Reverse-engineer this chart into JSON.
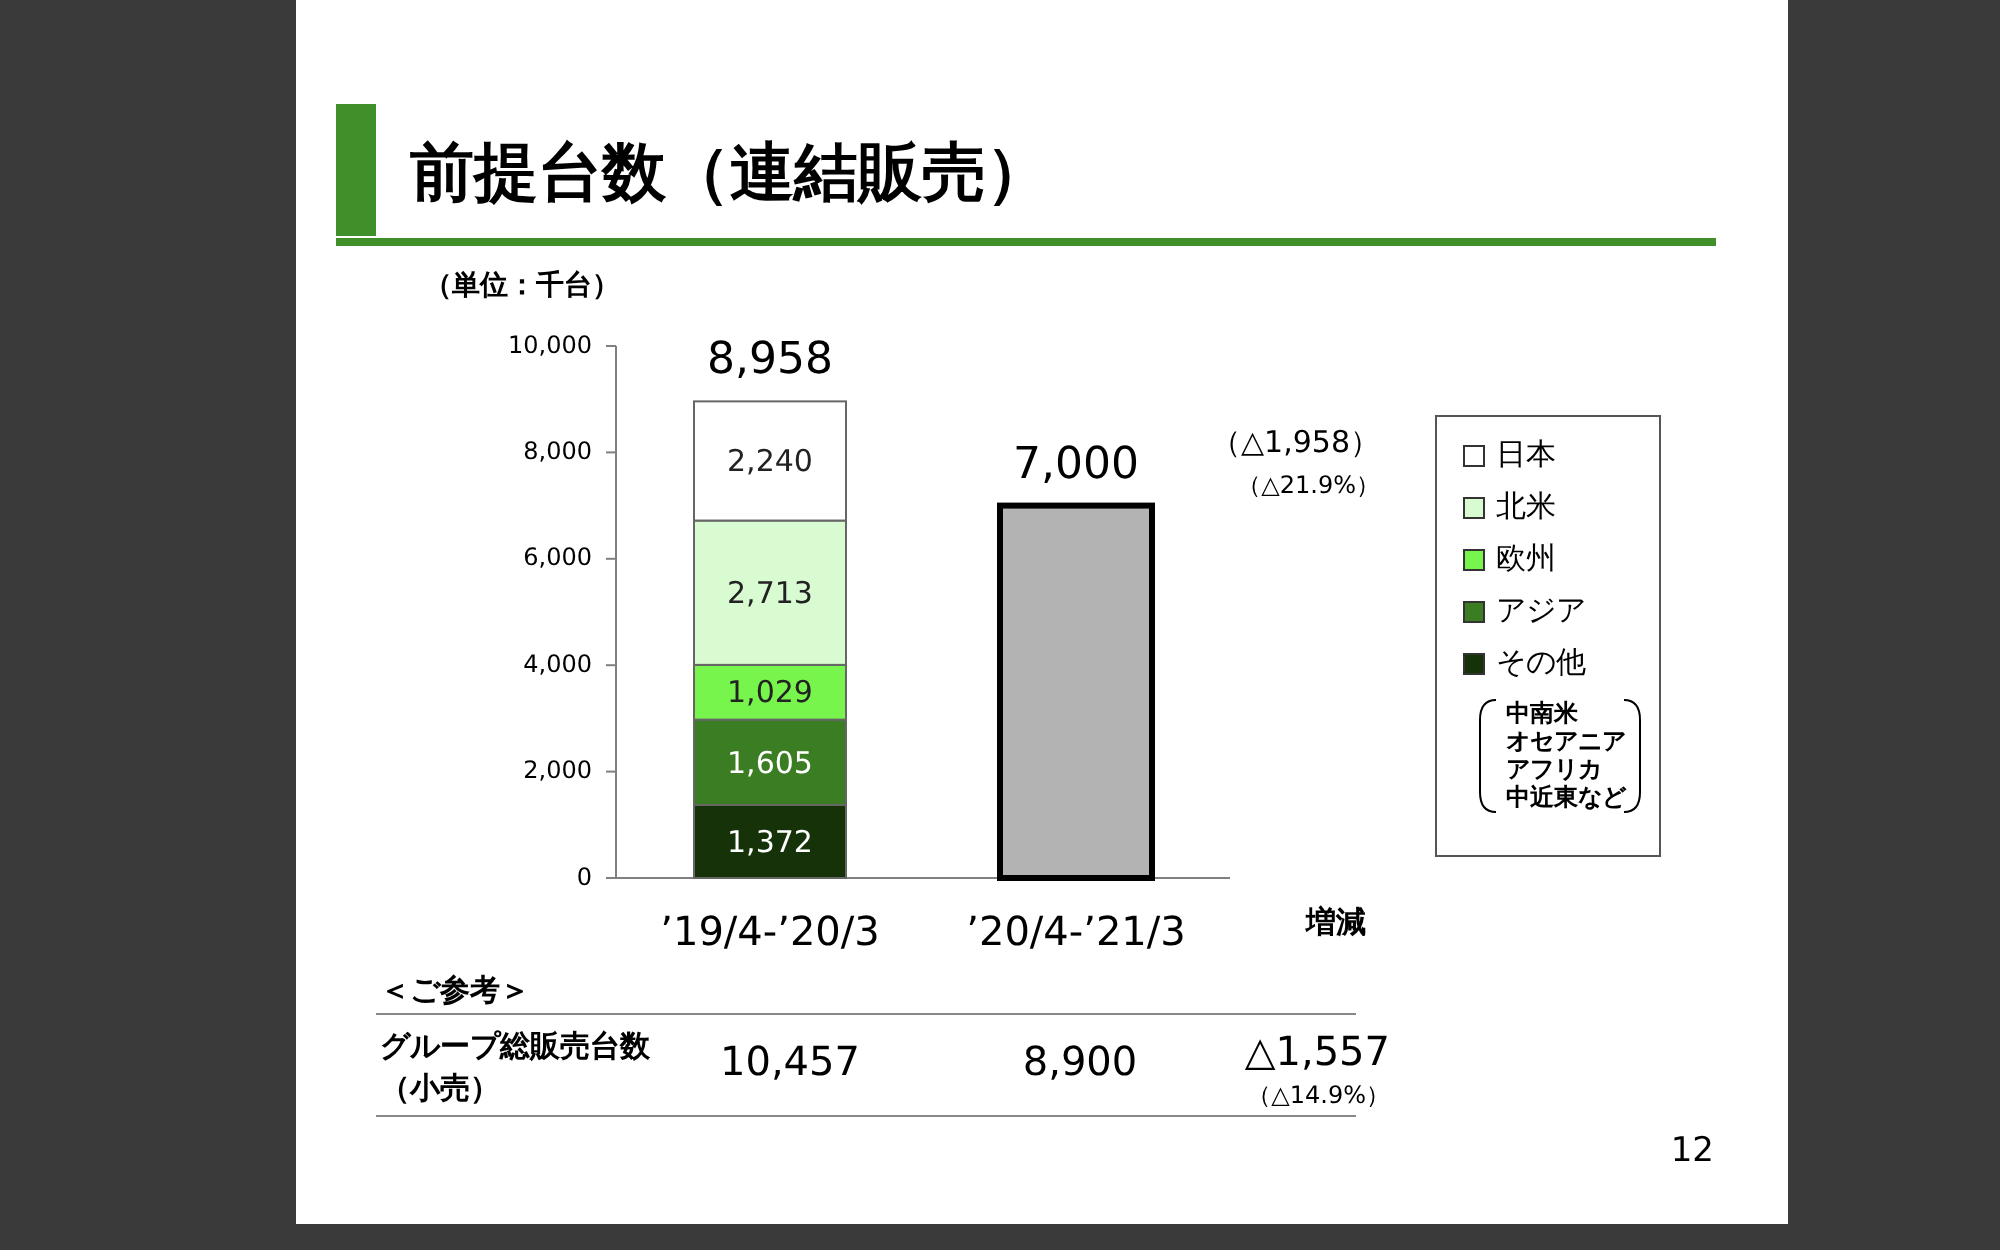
{
  "chart_data": {
    "type": "bar",
    "stacked": true,
    "title": "前提台数（連結販売）",
    "ylabel": "（単位：千台）",
    "categories": [
      "’19/4-’20/3",
      "’20/4-’21/3"
    ],
    "series": [
      {
        "name": "その他",
        "color": "#153209",
        "values": [
          1372,
          null
        ],
        "value_labels": [
          "1,372",
          null
        ]
      },
      {
        "name": "アジア",
        "color": "#3a7d22",
        "values": [
          1605,
          null
        ],
        "value_labels": [
          "1,605",
          null
        ]
      },
      {
        "name": "欧州",
        "color": "#77f54d",
        "values": [
          1029,
          null
        ],
        "value_labels": [
          "1,029",
          null
        ]
      },
      {
        "name": "北米",
        "color": "#d9fbd2",
        "values": [
          2713,
          null
        ],
        "value_labels": [
          "2,713",
          null
        ]
      },
      {
        "name": "日本",
        "color": "#ffffff",
        "values": [
          2240,
          null
        ],
        "value_labels": [
          "2,240",
          null
        ]
      },
      {
        "color": "#b3b3b3",
        "values": [
          null,
          7000
        ]
      }
    ],
    "totals": [
      "8,958",
      "7,000"
    ],
    "ylim": [
      0,
      10000
    ],
    "yticks": [
      0,
      {
        "value": 2000,
        "label": "2,000"
      },
      {
        "value": 4000,
        "label": "4,000"
      },
      {
        "value": 6000,
        "label": "6,000"
      },
      {
        "value": 8000,
        "label": "8,000"
      },
      {
        "value": 10000,
        "label": "10,000"
      }
    ],
    "legend": "right",
    "annotations": [
      "（△1,958）",
      "（△21.9%）",
      "増減",
      "＜ご参考＞",
      "グループ総販売台数",
      "（小売）",
      "10,457",
      "8,900",
      "△1,557",
      "（△14.9%）",
      "中南米",
      "オセアニア",
      "アフリカ",
      "中近東など",
      "12"
    ]
  }
}
